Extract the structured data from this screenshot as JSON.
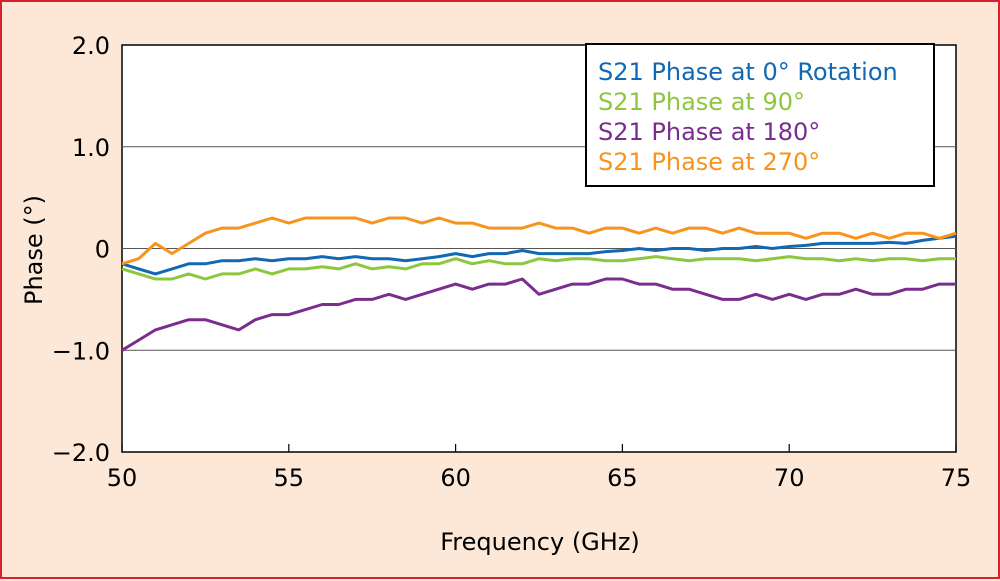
{
  "chart_data": {
    "type": "line",
    "title": "",
    "xlabel": "Frequency (GHz)",
    "ylabel": "Phase (°)",
    "xlim": [
      50,
      75
    ],
    "ylim": [
      -2.0,
      2.0
    ],
    "x_ticks": [
      "50",
      "55",
      "60",
      "65",
      "70",
      "75"
    ],
    "y_ticks": [
      "2.0",
      "1.0",
      "0",
      "−1.0",
      "−2.0"
    ],
    "y_tick_values": [
      2.0,
      1.0,
      0,
      -1.0,
      -2.0
    ],
    "grid": "horizontal",
    "legend_position": "top-right",
    "x": [
      50,
      50.5,
      51,
      51.5,
      52,
      52.5,
      53,
      53.5,
      54,
      54.5,
      55,
      55.5,
      56,
      56.5,
      57,
      57.5,
      58,
      58.5,
      59,
      59.5,
      60,
      60.5,
      61,
      61.5,
      62,
      62.5,
      63,
      63.5,
      64,
      64.5,
      65,
      65.5,
      66,
      66.5,
      67,
      67.5,
      68,
      68.5,
      69,
      69.5,
      70,
      70.5,
      71,
      71.5,
      72,
      72.5,
      73,
      73.5,
      74,
      74.5,
      75
    ],
    "series": [
      {
        "name": "S21 Phase at 0° Rotation",
        "color": "#1268b3",
        "values": [
          -0.15,
          -0.2,
          -0.25,
          -0.2,
          -0.15,
          -0.15,
          -0.12,
          -0.12,
          -0.1,
          -0.12,
          -0.1,
          -0.1,
          -0.08,
          -0.1,
          -0.08,
          -0.1,
          -0.1,
          -0.12,
          -0.1,
          -0.08,
          -0.05,
          -0.08,
          -0.05,
          -0.05,
          -0.02,
          -0.05,
          -0.05,
          -0.05,
          -0.05,
          -0.03,
          -0.02,
          0.0,
          -0.02,
          0.0,
          0.0,
          -0.02,
          0.0,
          0.0,
          0.02,
          0.0,
          0.02,
          0.03,
          0.05,
          0.05,
          0.05,
          0.05,
          0.06,
          0.05,
          0.08,
          0.1,
          0.12
        ]
      },
      {
        "name": "S21 Phase at 90°",
        "color": "#8dc63f",
        "values": [
          -0.2,
          -0.25,
          -0.3,
          -0.3,
          -0.25,
          -0.3,
          -0.25,
          -0.25,
          -0.2,
          -0.25,
          -0.2,
          -0.2,
          -0.18,
          -0.2,
          -0.15,
          -0.2,
          -0.18,
          -0.2,
          -0.15,
          -0.15,
          -0.1,
          -0.15,
          -0.12,
          -0.15,
          -0.15,
          -0.1,
          -0.12,
          -0.1,
          -0.1,
          -0.12,
          -0.12,
          -0.1,
          -0.08,
          -0.1,
          -0.12,
          -0.1,
          -0.1,
          -0.1,
          -0.12,
          -0.1,
          -0.08,
          -0.1,
          -0.1,
          -0.12,
          -0.1,
          -0.12,
          -0.1,
          -0.1,
          -0.12,
          -0.1,
          -0.1
        ]
      },
      {
        "name": "S21 Phase at 180°",
        "color": "#7b2d8e",
        "values": [
          -1.0,
          -0.9,
          -0.8,
          -0.75,
          -0.7,
          -0.7,
          -0.75,
          -0.8,
          -0.7,
          -0.65,
          -0.65,
          -0.6,
          -0.55,
          -0.55,
          -0.5,
          -0.5,
          -0.45,
          -0.5,
          -0.45,
          -0.4,
          -0.35,
          -0.4,
          -0.35,
          -0.35,
          -0.3,
          -0.45,
          -0.4,
          -0.35,
          -0.35,
          -0.3,
          -0.3,
          -0.35,
          -0.35,
          -0.4,
          -0.4,
          -0.45,
          -0.5,
          -0.5,
          -0.45,
          -0.5,
          -0.45,
          -0.5,
          -0.45,
          -0.45,
          -0.4,
          -0.45,
          -0.45,
          -0.4,
          -0.4,
          -0.35,
          -0.35
        ]
      },
      {
        "name": "S21 Phase at 270°",
        "color": "#f7941d",
        "values": [
          -0.15,
          -0.1,
          0.05,
          -0.05,
          0.05,
          0.15,
          0.2,
          0.2,
          0.25,
          0.3,
          0.25,
          0.3,
          0.3,
          0.3,
          0.3,
          0.25,
          0.3,
          0.3,
          0.25,
          0.3,
          0.25,
          0.25,
          0.2,
          0.2,
          0.2,
          0.25,
          0.2,
          0.2,
          0.15,
          0.2,
          0.2,
          0.15,
          0.2,
          0.15,
          0.2,
          0.2,
          0.15,
          0.2,
          0.15,
          0.15,
          0.15,
          0.1,
          0.15,
          0.15,
          0.1,
          0.15,
          0.1,
          0.15,
          0.15,
          0.1,
          0.15
        ]
      }
    ]
  }
}
